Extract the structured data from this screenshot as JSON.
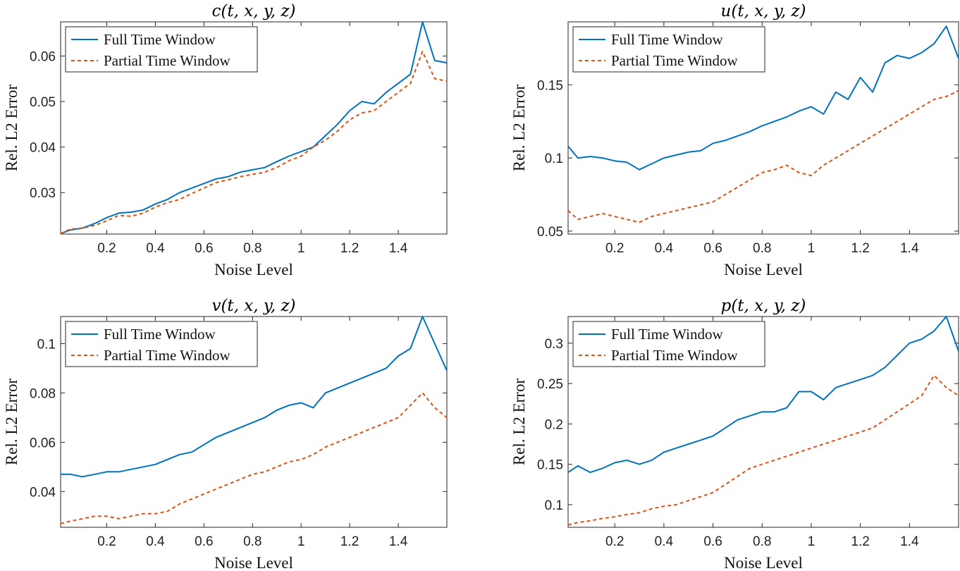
{
  "legend_entries": [
    "Full Time Window",
    "Partial Time Window"
  ],
  "colors": {
    "full": "#0072BD",
    "partial": "#D95319"
  },
  "chart_data": [
    {
      "type": "line",
      "title": "c(t, x, y, z)",
      "xlabel": "Noise Level",
      "ylabel": "Rel. L2 Error",
      "xlim": [
        0.01,
        1.6
      ],
      "ylim": [
        0.0209,
        0.0675
      ],
      "xticks": [
        "0.2",
        "0.4",
        "0.6",
        "0.8",
        "1",
        "1.2",
        "1.4"
      ],
      "yticks": [
        "0.03",
        "0.04",
        "0.05",
        "0.06"
      ],
      "legend": "top-left",
      "series": [
        {
          "name": "Full Time Window",
          "style": "solid",
          "x": [
            0.01,
            0.05,
            0.1,
            0.15,
            0.2,
            0.25,
            0.3,
            0.35,
            0.4,
            0.45,
            0.5,
            0.55,
            0.6,
            0.65,
            0.7,
            0.75,
            0.8,
            0.85,
            0.9,
            0.95,
            1.0,
            1.05,
            1.1,
            1.15,
            1.2,
            1.25,
            1.3,
            1.35,
            1.4,
            1.45,
            1.5,
            1.55,
            1.6
          ],
          "y": [
            0.021,
            0.0218,
            0.0222,
            0.0232,
            0.0245,
            0.0255,
            0.0257,
            0.0262,
            0.0275,
            0.0285,
            0.03,
            0.031,
            0.032,
            0.033,
            0.0335,
            0.0345,
            0.035,
            0.0355,
            0.0368,
            0.038,
            0.039,
            0.04,
            0.0425,
            0.045,
            0.048,
            0.05,
            0.0495,
            0.052,
            0.054,
            0.056,
            0.0675,
            0.059,
            0.0585
          ]
        },
        {
          "name": "Partial Time Window",
          "style": "dashed",
          "x": [
            0.01,
            0.05,
            0.1,
            0.15,
            0.2,
            0.25,
            0.3,
            0.35,
            0.4,
            0.45,
            0.5,
            0.55,
            0.6,
            0.65,
            0.7,
            0.75,
            0.8,
            0.85,
            0.9,
            0.95,
            1.0,
            1.05,
            1.1,
            1.15,
            1.2,
            1.25,
            1.3,
            1.35,
            1.4,
            1.45,
            1.5,
            1.55,
            1.6
          ],
          "y": [
            0.021,
            0.022,
            0.0222,
            0.0228,
            0.0238,
            0.025,
            0.0248,
            0.0255,
            0.0268,
            0.0278,
            0.0285,
            0.0298,
            0.031,
            0.0322,
            0.0328,
            0.0335,
            0.034,
            0.0345,
            0.0355,
            0.037,
            0.038,
            0.04,
            0.0415,
            0.0435,
            0.046,
            0.0475,
            0.048,
            0.05,
            0.052,
            0.054,
            0.061,
            0.055,
            0.0545
          ]
        }
      ]
    },
    {
      "type": "line",
      "title": "u(t, x, y, z)",
      "xlabel": "Noise Level",
      "ylabel": "Rel. L2 Error",
      "xlim": [
        0.01,
        1.6
      ],
      "ylim": [
        0.048,
        0.193
      ],
      "xticks": [
        "0.2",
        "0.4",
        "0.6",
        "0.8",
        "1",
        "1.2",
        "1.4"
      ],
      "yticks": [
        "0.05",
        "0.1",
        "0.15"
      ],
      "legend": "top-left",
      "series": [
        {
          "name": "Full Time Window",
          "style": "solid",
          "x": [
            0.01,
            0.05,
            0.1,
            0.15,
            0.2,
            0.25,
            0.3,
            0.35,
            0.4,
            0.45,
            0.5,
            0.55,
            0.6,
            0.65,
            0.7,
            0.75,
            0.8,
            0.85,
            0.9,
            0.95,
            1.0,
            1.05,
            1.1,
            1.15,
            1.2,
            1.25,
            1.3,
            1.35,
            1.4,
            1.45,
            1.5,
            1.55,
            1.6
          ],
          "y": [
            0.108,
            0.1,
            0.101,
            0.1,
            0.098,
            0.097,
            0.092,
            0.096,
            0.1,
            0.102,
            0.104,
            0.105,
            0.11,
            0.112,
            0.115,
            0.118,
            0.122,
            0.125,
            0.128,
            0.132,
            0.135,
            0.13,
            0.145,
            0.14,
            0.155,
            0.145,
            0.165,
            0.17,
            0.168,
            0.172,
            0.178,
            0.19,
            0.168
          ]
        },
        {
          "name": "Partial Time Window",
          "style": "dashed",
          "x": [
            0.01,
            0.05,
            0.1,
            0.15,
            0.2,
            0.25,
            0.3,
            0.35,
            0.4,
            0.45,
            0.5,
            0.55,
            0.6,
            0.65,
            0.7,
            0.75,
            0.8,
            0.85,
            0.9,
            0.95,
            1.0,
            1.05,
            1.1,
            1.15,
            1.2,
            1.25,
            1.3,
            1.35,
            1.4,
            1.45,
            1.5,
            1.55,
            1.6
          ],
          "y": [
            0.064,
            0.058,
            0.06,
            0.062,
            0.06,
            0.058,
            0.056,
            0.06,
            0.062,
            0.064,
            0.066,
            0.068,
            0.07,
            0.075,
            0.08,
            0.085,
            0.09,
            0.092,
            0.095,
            0.09,
            0.088,
            0.095,
            0.1,
            0.105,
            0.11,
            0.115,
            0.12,
            0.125,
            0.13,
            0.135,
            0.14,
            0.142,
            0.146
          ]
        }
      ]
    },
    {
      "type": "line",
      "title": "v(t, x, y, z)",
      "xlabel": "Noise Level",
      "ylabel": "Rel. L2 Error",
      "xlim": [
        0.01,
        1.6
      ],
      "ylim": [
        0.0255,
        0.111
      ],
      "xticks": [
        "0.2",
        "0.4",
        "0.6",
        "0.8",
        "1",
        "1.2",
        "1.4"
      ],
      "yticks": [
        "0.04",
        "0.06",
        "0.08",
        "0.1"
      ],
      "legend": "top-left",
      "series": [
        {
          "name": "Full Time Window",
          "style": "solid",
          "x": [
            0.01,
            0.05,
            0.1,
            0.15,
            0.2,
            0.25,
            0.3,
            0.35,
            0.4,
            0.45,
            0.5,
            0.55,
            0.6,
            0.65,
            0.7,
            0.75,
            0.8,
            0.85,
            0.9,
            0.95,
            1.0,
            1.05,
            1.1,
            1.15,
            1.2,
            1.25,
            1.3,
            1.35,
            1.4,
            1.45,
            1.5,
            1.55,
            1.6
          ],
          "y": [
            0.047,
            0.047,
            0.046,
            0.047,
            0.048,
            0.048,
            0.049,
            0.05,
            0.051,
            0.053,
            0.055,
            0.056,
            0.059,
            0.062,
            0.064,
            0.066,
            0.068,
            0.07,
            0.073,
            0.075,
            0.076,
            0.074,
            0.08,
            0.082,
            0.084,
            0.086,
            0.088,
            0.09,
            0.095,
            0.098,
            0.111,
            0.1,
            0.089
          ]
        },
        {
          "name": "Partial Time Window",
          "style": "dashed",
          "x": [
            0.01,
            0.05,
            0.1,
            0.15,
            0.2,
            0.25,
            0.3,
            0.35,
            0.4,
            0.45,
            0.5,
            0.55,
            0.6,
            0.65,
            0.7,
            0.75,
            0.8,
            0.85,
            0.9,
            0.95,
            1.0,
            1.05,
            1.1,
            1.15,
            1.2,
            1.25,
            1.3,
            1.35,
            1.4,
            1.45,
            1.5,
            1.55,
            1.6
          ],
          "y": [
            0.027,
            0.028,
            0.029,
            0.03,
            0.03,
            0.029,
            0.03,
            0.031,
            0.031,
            0.032,
            0.035,
            0.037,
            0.039,
            0.041,
            0.043,
            0.045,
            0.047,
            0.048,
            0.05,
            0.052,
            0.053,
            0.055,
            0.058,
            0.06,
            0.062,
            0.064,
            0.066,
            0.068,
            0.07,
            0.075,
            0.08,
            0.074,
            0.07
          ]
        }
      ]
    },
    {
      "type": "line",
      "title": "p(t, x, y, z)",
      "xlabel": "Noise Level",
      "ylabel": "Rel. L2 Error",
      "xlim": [
        0.01,
        1.6
      ],
      "ylim": [
        0.072,
        0.333
      ],
      "xticks": [
        "0.2",
        "0.4",
        "0.6",
        "0.8",
        "1",
        "1.2",
        "1.4"
      ],
      "yticks": [
        "0.1",
        "0.15",
        "0.2",
        "0.25",
        "0.3"
      ],
      "legend": "top-left",
      "series": [
        {
          "name": "Full Time Window",
          "style": "solid",
          "x": [
            0.01,
            0.05,
            0.1,
            0.15,
            0.2,
            0.25,
            0.3,
            0.35,
            0.4,
            0.45,
            0.5,
            0.55,
            0.6,
            0.65,
            0.7,
            0.75,
            0.8,
            0.85,
            0.9,
            0.95,
            1.0,
            1.05,
            1.1,
            1.15,
            1.2,
            1.25,
            1.3,
            1.35,
            1.4,
            1.45,
            1.5,
            1.55,
            1.6
          ],
          "y": [
            0.14,
            0.148,
            0.14,
            0.145,
            0.152,
            0.155,
            0.15,
            0.155,
            0.165,
            0.17,
            0.175,
            0.18,
            0.185,
            0.195,
            0.205,
            0.21,
            0.215,
            0.215,
            0.22,
            0.24,
            0.24,
            0.23,
            0.245,
            0.25,
            0.255,
            0.26,
            0.27,
            0.285,
            0.3,
            0.305,
            0.315,
            0.333,
            0.29
          ]
        },
        {
          "name": "Partial Time Window",
          "style": "dashed",
          "x": [
            0.01,
            0.05,
            0.1,
            0.15,
            0.2,
            0.25,
            0.3,
            0.35,
            0.4,
            0.45,
            0.5,
            0.55,
            0.6,
            0.65,
            0.7,
            0.75,
            0.8,
            0.85,
            0.9,
            0.95,
            1.0,
            1.05,
            1.1,
            1.15,
            1.2,
            1.25,
            1.3,
            1.35,
            1.4,
            1.45,
            1.5,
            1.55,
            1.6
          ],
          "y": [
            0.075,
            0.078,
            0.08,
            0.083,
            0.085,
            0.088,
            0.09,
            0.095,
            0.098,
            0.1,
            0.105,
            0.11,
            0.115,
            0.125,
            0.135,
            0.145,
            0.15,
            0.155,
            0.16,
            0.165,
            0.17,
            0.175,
            0.18,
            0.185,
            0.19,
            0.195,
            0.205,
            0.215,
            0.225,
            0.235,
            0.26,
            0.245,
            0.235
          ]
        }
      ]
    }
  ]
}
